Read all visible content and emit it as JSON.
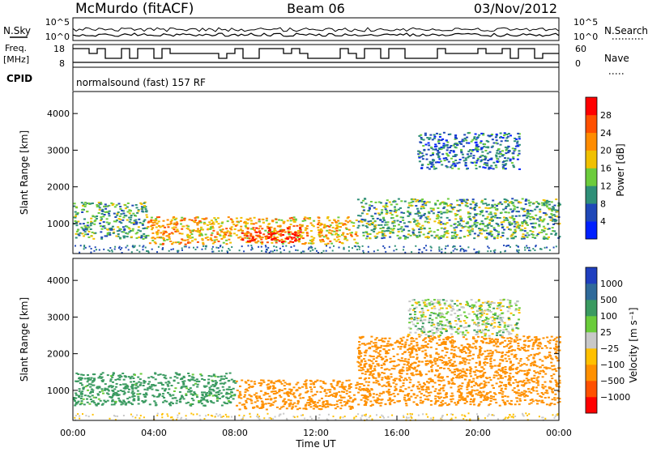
{
  "header": {
    "station": "McMurdo (fitACF)",
    "beam": "Beam 06",
    "date": "03/Nov/2012"
  },
  "strip": {
    "nsky_label": "N.Sky",
    "nsky_ticks": [
      "10^5",
      "10^0"
    ],
    "nsearch_label": "N.Search",
    "nsearch_ticks": [
      "10^5",
      "10^0"
    ],
    "freq_label": "Freq.",
    "freq_unit": "[MHz]",
    "freq_ticks": [
      "18",
      "8"
    ],
    "nave_label": "Nave",
    "nave_ticks": [
      "60",
      "0"
    ],
    "cpid_label": "CPID",
    "cpid_value": "normalsound (fast) 157 RF"
  },
  "chart_data": [
    {
      "type": "heatmap",
      "panel": "power",
      "ylabel": "Slant Range [km]",
      "ylim": [
        180,
        4600
      ],
      "yticks": [
        "1000",
        "2000",
        "3000",
        "4000"
      ],
      "xlabel": "",
      "xlim": [
        0,
        24
      ],
      "colorbar": {
        "label": "Power [dB]",
        "ticks": [
          "4",
          "8",
          "12",
          "16",
          "20",
          "24",
          "28"
        ],
        "range": [
          0,
          32
        ],
        "colors": [
          "#0020ff",
          "#1f48b8",
          "#2f8f78",
          "#6ccc3c",
          "#f0c000",
          "#ff8c00",
          "#ff5000",
          "#ff0000"
        ]
      },
      "echo_bands": [
        {
          "t_start": 0.0,
          "t_end": 3.6,
          "range_low_km": 600,
          "range_high_km": 1600,
          "level_db": 12
        },
        {
          "t_start": 3.6,
          "t_end": 14.0,
          "range_low_km": 450,
          "range_high_km": 1200,
          "level_db": 20
        },
        {
          "t_start": 8.3,
          "t_end": 11.2,
          "range_low_km": 500,
          "range_high_km": 900,
          "level_db": 28
        },
        {
          "t_start": 14.0,
          "t_end": 24.0,
          "range_low_km": 600,
          "range_high_km": 1700,
          "level_db": 12
        },
        {
          "t_start": 17.0,
          "t_end": 22.0,
          "range_low_km": 2500,
          "range_high_km": 3500,
          "level_db": 8
        }
      ]
    },
    {
      "type": "heatmap",
      "panel": "velocity",
      "ylabel": "Slant Range [km]",
      "ylim": [
        180,
        4600
      ],
      "yticks": [
        "1000",
        "2000",
        "3000",
        "4000"
      ],
      "xlabel": "Time UT",
      "xlim": [
        0,
        24
      ],
      "xticks": [
        "00:00",
        "04:00",
        "08:00",
        "12:00",
        "16:00",
        "20:00",
        "00:00"
      ],
      "colorbar": {
        "label": "Velocity [m s⁻¹]",
        "ticks": [
          "1000",
          "500",
          "100",
          "25",
          "−25",
          "−100",
          "−500",
          "−1000"
        ],
        "colors": [
          "#1f3fbf",
          "#2f6a9a",
          "#3a9a60",
          "#6acc3a",
          "#c8c8c8",
          "#ffc000",
          "#ff9000",
          "#ff5000",
          "#ff0000"
        ]
      },
      "echo_bands": [
        {
          "t_start": 0.0,
          "t_end": 8.0,
          "range_low_km": 600,
          "range_high_km": 1500,
          "velocity_ms": 60
        },
        {
          "t_start": 8.0,
          "t_end": 14.0,
          "range_low_km": 500,
          "range_high_km": 1300,
          "velocity_ms": -300
        },
        {
          "t_start": 14.0,
          "t_end": 24.0,
          "range_low_km": 600,
          "range_high_km": 2500,
          "velocity_ms": -300
        },
        {
          "t_start": 16.5,
          "t_end": 22.0,
          "range_low_km": 2500,
          "range_high_km": 3500,
          "velocity_ms": 0
        }
      ]
    }
  ]
}
